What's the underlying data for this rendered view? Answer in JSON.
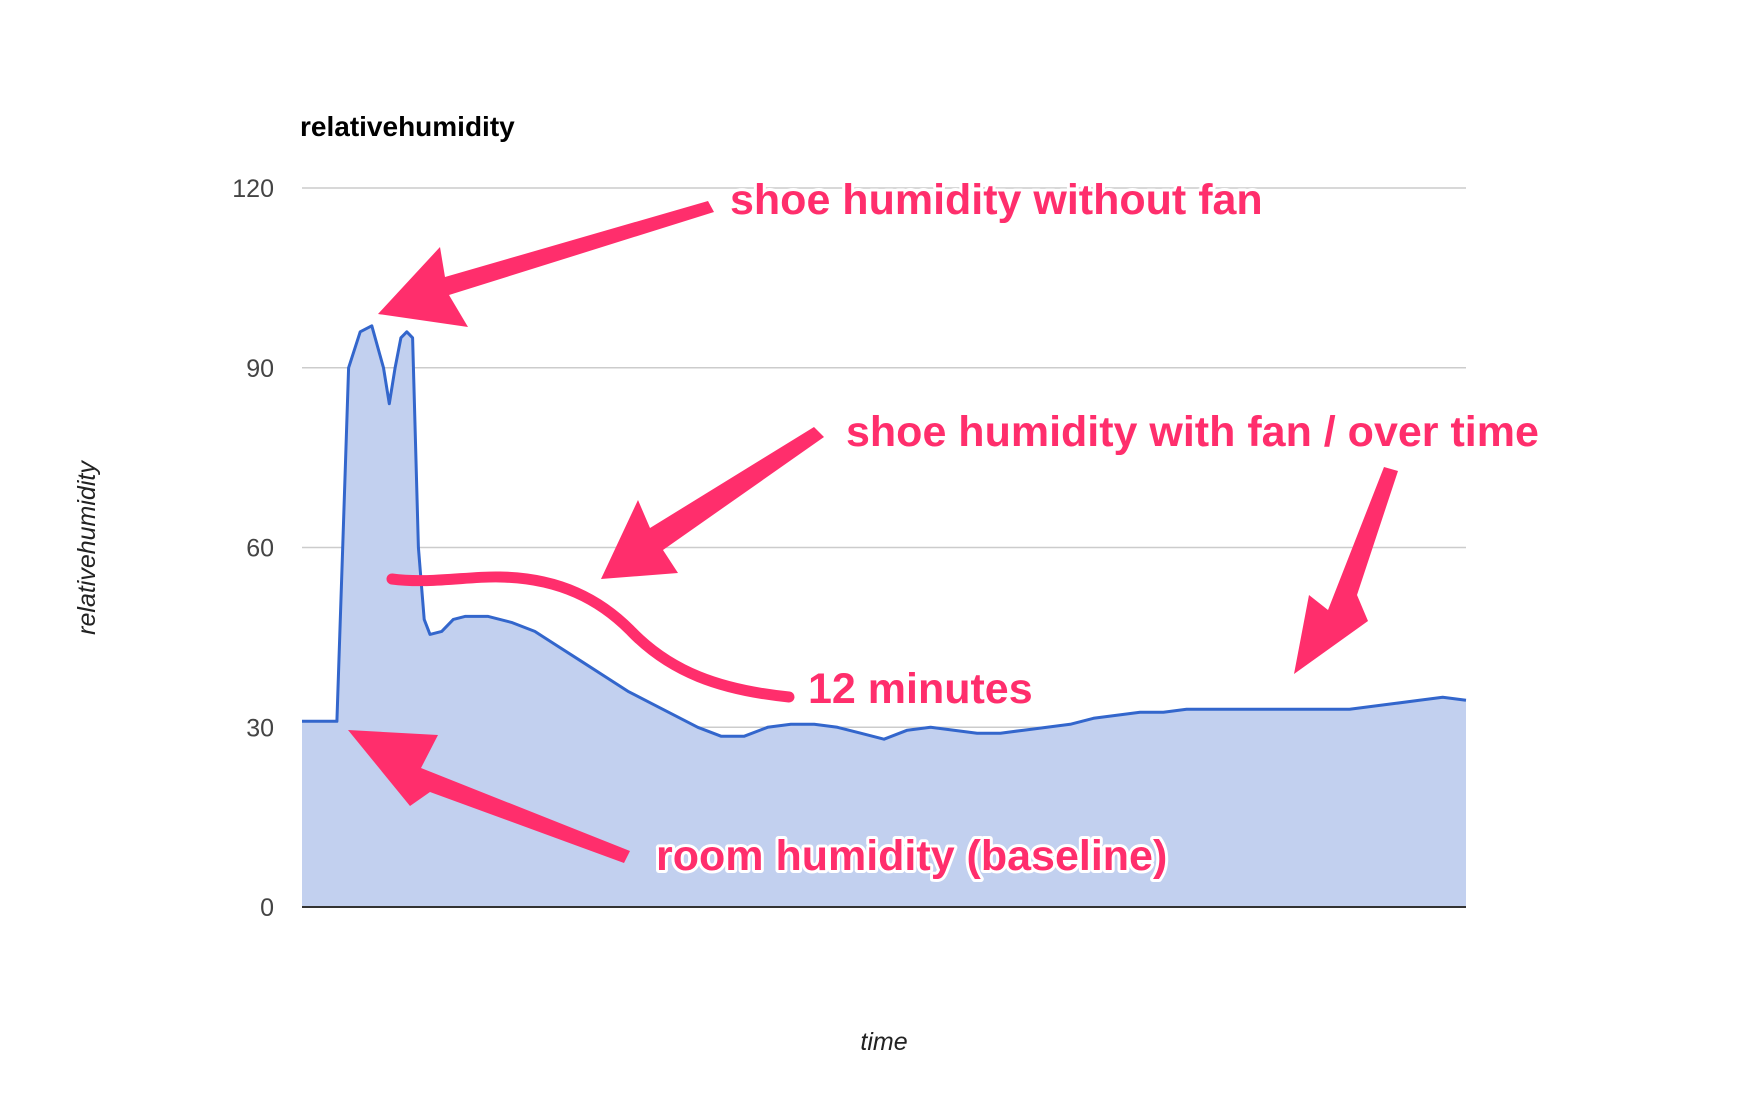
{
  "chart_data": {
    "type": "area",
    "title": "relativehumidity",
    "xlabel": "time",
    "ylabel": "relativehumidity",
    "ylim": [
      0,
      120
    ],
    "y_ticks": [
      "0",
      "30",
      "60",
      "90",
      "120"
    ],
    "grid": true,
    "legend": "none",
    "x": [
      0,
      1,
      2,
      3,
      3.5,
      4,
      5,
      6,
      7,
      7.5,
      8,
      8.5,
      9,
      9.5,
      10,
      10.5,
      11,
      12,
      12.5,
      13,
      14,
      16,
      18,
      20,
      22,
      24,
      26,
      28,
      30,
      32,
      34,
      36,
      38,
      40,
      42,
      44,
      46,
      48,
      50,
      52,
      54,
      56,
      58,
      60,
      62,
      64,
      66,
      68,
      70,
      72,
      74,
      76,
      78,
      80,
      82,
      84,
      86,
      88,
      90,
      92,
      94,
      96,
      98,
      100
    ],
    "series": [
      {
        "color": "#3366cc",
        "fill": "#c2d0ef",
        "values": [
          31,
          31,
          31,
          31,
          60,
          90,
          96,
          97,
          90,
          84,
          90,
          95,
          96,
          95,
          60,
          48,
          45.5,
          46,
          47,
          48,
          48.5,
          48.5,
          47.5,
          46,
          43.5,
          41,
          38.5,
          36,
          34,
          32,
          30,
          28.5,
          28.5,
          30,
          30.5,
          30.5,
          30,
          29,
          28,
          29.5,
          30,
          29.5,
          29,
          29,
          29.5,
          30,
          30.5,
          31.5,
          32,
          32.5,
          32.5,
          33,
          33,
          33,
          33,
          33,
          33,
          33,
          33,
          33.5,
          34,
          34.5,
          35,
          34.5
        ]
      }
    ],
    "annotations": [
      {
        "text": "shoe humidity without fan"
      },
      {
        "text": "shoe humidity with fan / over time"
      },
      {
        "text": "12 minutes"
      },
      {
        "text": "room humidity (baseline)"
      }
    ]
  },
  "colors": {
    "annotation": "#ff2e6c",
    "line": "#3366cc",
    "area": "#c2d0ef",
    "grid": "#cccccc"
  }
}
